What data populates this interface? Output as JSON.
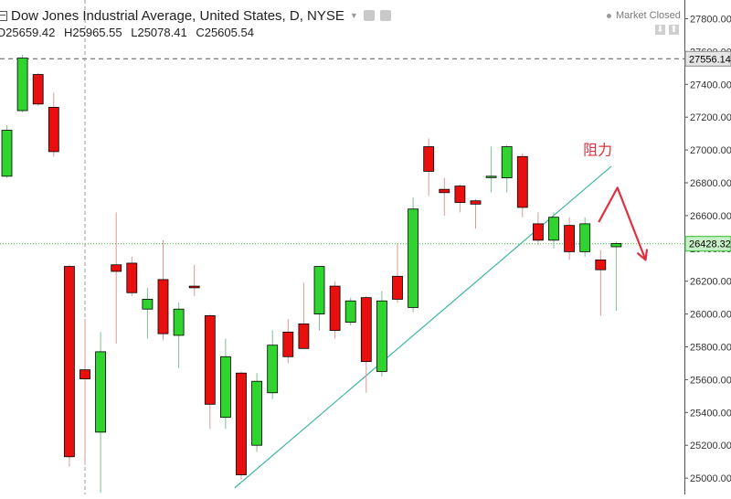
{
  "header": {
    "symbol_title": "Dow Jones Industrial Average, United States, D, NYSE",
    "ohlc": {
      "o_label": "O",
      "o": "25659.42",
      "h_label": "H",
      "h": "25965.55",
      "l_label": "L",
      "l": "25078.41",
      "c_label": "C",
      "c": "25605.54"
    },
    "market_status": "Market Closed"
  },
  "colors": {
    "up": "#2fd42f",
    "down": "#e8100f",
    "trendline": "#3fb6a0",
    "annotation": "#e03040",
    "last_price_line": "#2fbf2f",
    "crosshair": "#9a9a9a"
  },
  "chart_data": {
    "type": "candlestick",
    "title": "Dow Jones Industrial Average, United States, D, NYSE",
    "ylim": [
      24900,
      27900
    ],
    "y_ticks": [
      "27800.00",
      "27600.00",
      "27400.00",
      "27200.00",
      "27000.00",
      "26800.00",
      "26600.00",
      "26400.00",
      "26200.00",
      "26000.00",
      "25800.00",
      "25600.00",
      "25400.00",
      "25200.00",
      "25000.00"
    ],
    "y_tick_values": [
      27800,
      27600,
      27400,
      27200,
      27000,
      26800,
      26600,
      26400,
      26200,
      26000,
      25800,
      25600,
      25400,
      25200,
      25000
    ],
    "candles": [
      {
        "o": 26840,
        "h": 27150,
        "l": 26830,
        "c": 27120
      },
      {
        "o": 27240,
        "h": 27580,
        "l": 27230,
        "c": 27560
      },
      {
        "o": 27460,
        "h": 27470,
        "l": 27270,
        "c": 27280
      },
      {
        "o": 27260,
        "h": 27350,
        "l": 26960,
        "c": 26990
      },
      {
        "o": 26290,
        "h": 26300,
        "l": 25070,
        "c": 25130
      },
      {
        "o": 25660,
        "h": 25970,
        "l": 25080,
        "c": 25605
      },
      {
        "o": 25280,
        "h": 25890,
        "l": 24910,
        "c": 25770
      },
      {
        "o": 26300,
        "h": 26620,
        "l": 25820,
        "c": 26260
      },
      {
        "o": 26310,
        "h": 26350,
        "l": 26110,
        "c": 26130
      },
      {
        "o": 26030,
        "h": 26160,
        "l": 25850,
        "c": 26090
      },
      {
        "o": 26210,
        "h": 26450,
        "l": 25840,
        "c": 25880
      },
      {
        "o": 25870,
        "h": 26070,
        "l": 25670,
        "c": 26030
      },
      {
        "o": 26170,
        "h": 26300,
        "l": 26110,
        "c": 26160
      },
      {
        "o": 25990,
        "h": 26000,
        "l": 25300,
        "c": 25450
      },
      {
        "o": 25370,
        "h": 25850,
        "l": 25300,
        "c": 25740
      },
      {
        "o": 25640,
        "h": 25650,
        "l": 24990,
        "c": 25020
      },
      {
        "o": 25200,
        "h": 25640,
        "l": 25160,
        "c": 25590
      },
      {
        "o": 25520,
        "h": 25900,
        "l": 25480,
        "c": 25810
      },
      {
        "o": 25890,
        "h": 25970,
        "l": 25700,
        "c": 25740
      },
      {
        "o": 25940,
        "h": 26190,
        "l": 25800,
        "c": 25790
      },
      {
        "o": 26000,
        "h": 26290,
        "l": 25900,
        "c": 26290
      },
      {
        "o": 26170,
        "h": 26200,
        "l": 25850,
        "c": 25900
      },
      {
        "o": 25950,
        "h": 26100,
        "l": 25930,
        "c": 26080
      },
      {
        "o": 26100,
        "h": 26110,
        "l": 25520,
        "c": 25710
      },
      {
        "o": 25650,
        "h": 26140,
        "l": 25620,
        "c": 26080
      },
      {
        "o": 26230,
        "h": 26430,
        "l": 26070,
        "c": 26090
      },
      {
        "o": 26040,
        "h": 26710,
        "l": 26010,
        "c": 26640
      },
      {
        "o": 27020,
        "h": 27070,
        "l": 26720,
        "c": 26870
      },
      {
        "o": 26760,
        "h": 26830,
        "l": 26600,
        "c": 26740
      },
      {
        "o": 26780,
        "h": 26790,
        "l": 26620,
        "c": 26680
      },
      {
        "o": 26690,
        "h": 26700,
        "l": 26520,
        "c": 26670
      },
      {
        "o": 26840,
        "h": 27020,
        "l": 26740,
        "c": 26840
      },
      {
        "o": 26830,
        "h": 27030,
        "l": 26740,
        "c": 27020
      },
      {
        "o": 26960,
        "h": 26980,
        "l": 26590,
        "c": 26650
      },
      {
        "o": 26550,
        "h": 26620,
        "l": 26420,
        "c": 26450
      },
      {
        "o": 26450,
        "h": 26620,
        "l": 26400,
        "c": 26590
      },
      {
        "o": 26540,
        "h": 26590,
        "l": 26330,
        "c": 26380
      },
      {
        "o": 26380,
        "h": 26590,
        "l": 26350,
        "c": 26550
      },
      {
        "o": 26330,
        "h": 26390,
        "l": 25990,
        "c": 26270
      },
      {
        "o": 26410,
        "h": 26440,
        "l": 26020,
        "c": 26430
      }
    ],
    "horizontal_levels": [
      {
        "value": 27556.14,
        "label": "27556.14",
        "style": "dashed"
      },
      {
        "value": 26428.32,
        "label": "26428.32",
        "style": "dotted"
      }
    ],
    "trendline": {
      "x_index": [
        14.9,
        39.0
      ],
      "y": [
        24940,
        26900
      ]
    },
    "crosshair_index": 5,
    "annotation": {
      "text": "阻力",
      "x_index": 37.2,
      "y": 26970
    },
    "arrow": {
      "x_index": [
        38.2,
        39.4,
        41.2
      ],
      "y": [
        26560,
        26770,
        26330
      ]
    }
  }
}
